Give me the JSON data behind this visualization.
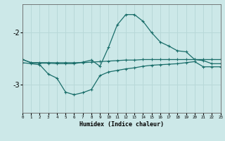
{
  "xlabel": "Humidex (Indice chaleur)",
  "bg_color": "#cce8e8",
  "grid_color": "#b8d8d8",
  "line_color": "#1a6e6a",
  "x_ticks": [
    0,
    1,
    2,
    3,
    4,
    5,
    6,
    7,
    8,
    9,
    10,
    11,
    12,
    13,
    14,
    15,
    16,
    17,
    18,
    19,
    20,
    21,
    22,
    23
  ],
  "y_ticks": [
    -3,
    -2
  ],
  "ylim": [
    -3.55,
    -1.45
  ],
  "xlim": [
    0,
    23
  ],
  "line1_y": [
    -2.52,
    -2.58,
    -2.58,
    -2.58,
    -2.58,
    -2.58,
    -2.58,
    -2.58,
    -2.57,
    -2.56,
    -2.55,
    -2.54,
    -2.53,
    -2.53,
    -2.52,
    -2.52,
    -2.52,
    -2.52,
    -2.52,
    -2.52,
    -2.52,
    -2.52,
    -2.52,
    -2.52
  ],
  "line2_y": [
    -2.52,
    -2.58,
    -2.59,
    -2.59,
    -2.6,
    -2.6,
    -2.6,
    -2.57,
    -2.53,
    -2.65,
    -2.28,
    -1.85,
    -1.65,
    -1.65,
    -1.78,
    -2.0,
    -2.18,
    -2.26,
    -2.35,
    -2.37,
    -2.52,
    -2.54,
    -2.6,
    -2.6
  ],
  "line3_y": [
    -2.58,
    -2.6,
    -2.62,
    -2.8,
    -2.88,
    -3.15,
    -3.2,
    -3.16,
    -3.1,
    -2.83,
    -2.76,
    -2.73,
    -2.7,
    -2.68,
    -2.65,
    -2.63,
    -2.62,
    -2.61,
    -2.6,
    -2.58,
    -2.56,
    -2.66,
    -2.66,
    -2.66
  ]
}
